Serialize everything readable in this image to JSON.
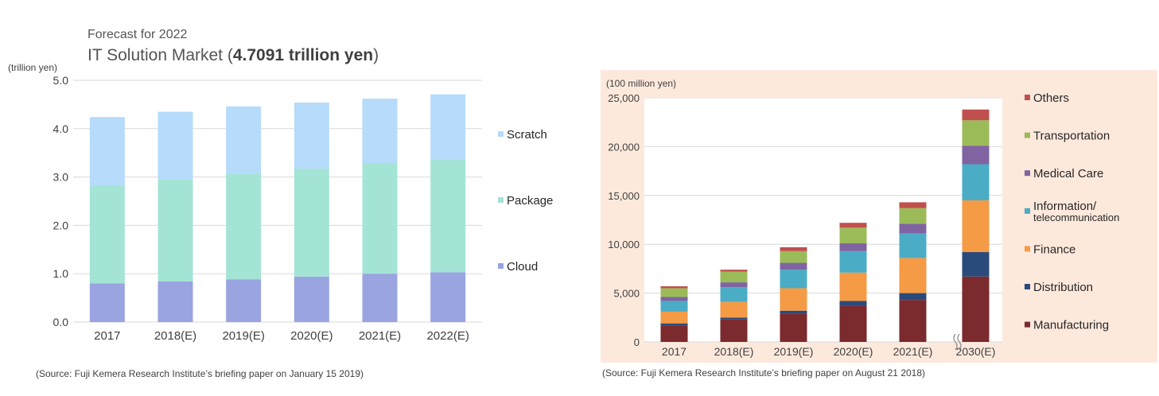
{
  "left": {
    "super_title": "Forecast for 2022",
    "title_prefix": "IT Solution Market (",
    "title_bold": "4.7091 trillion yen",
    "title_suffix": ")",
    "unit": "(trillion yen)",
    "source": "(Source: Fuji Kemera Research Institute’s briefing paper on January 15 2019)"
  },
  "right": {
    "unit": "(100 million yen)",
    "source": "(Source: Fuji Kemera Research Institute’s briefing paper on August 21 2018)"
  },
  "chart_data": [
    {
      "type": "bar",
      "stacked": true,
      "title": "IT Solution Market (4.7091 trillion yen)",
      "ylabel": "(trillion yen)",
      "categories": [
        "2017",
        "2018(E)",
        "2019(E)",
        "2020(E)",
        "2021(E)",
        "2022(E)"
      ],
      "ylim": [
        0,
        5
      ],
      "yticks": [
        "0.0",
        "1.0",
        "2.0",
        "3.0",
        "4.0",
        "5.0"
      ],
      "grid": true,
      "legend": "right",
      "series": [
        {
          "name": "Cloud",
          "color": "#9aa4e0",
          "values": [
            0.8,
            0.84,
            0.88,
            0.94,
            1.0,
            1.03
          ]
        },
        {
          "name": "Package",
          "color": "#a3e4d5",
          "values": [
            2.02,
            2.11,
            2.19,
            2.23,
            2.29,
            2.33
          ]
        },
        {
          "name": "Scratch",
          "color": "#b6dbfb",
          "values": [
            1.42,
            1.4,
            1.39,
            1.37,
            1.33,
            1.35
          ]
        }
      ]
    },
    {
      "type": "bar",
      "stacked": true,
      "ylabel": "(100 million yen)",
      "categories": [
        "2017",
        "2018(E)",
        "2019(E)",
        "2020(E)",
        "2021(E)",
        "2030(E)"
      ],
      "ylim": [
        0,
        25000
      ],
      "yticks": [
        "0",
        "5,000",
        "10,000",
        "15,000",
        "20,000",
        "25,000"
      ],
      "grid": true,
      "legend": "right",
      "axis_break_before_last": true,
      "series": [
        {
          "name": "Manufacturing",
          "color": "#7b2a2e",
          "values": [
            1700,
            2300,
            2900,
            3700,
            4300,
            6700
          ]
        },
        {
          "name": "Distribution",
          "color": "#2a4a7b",
          "values": [
            200,
            200,
            300,
            500,
            700,
            2500
          ]
        },
        {
          "name": "Finance",
          "color": "#f59a45",
          "values": [
            1200,
            1600,
            2300,
            2900,
            3600,
            5300
          ]
        },
        {
          "name": "Information/ telecommunication",
          "color": "#4bacc6",
          "values": [
            1100,
            1500,
            1900,
            2200,
            2500,
            3700
          ]
        },
        {
          "name": "Medical Care",
          "color": "#8064a2",
          "values": [
            400,
            500,
            700,
            800,
            1000,
            1900
          ]
        },
        {
          "name": "Transportation",
          "color": "#9bbb59",
          "values": [
            900,
            1100,
            1200,
            1600,
            1600,
            2600
          ]
        },
        {
          "name": "Others",
          "color": "#c0504d",
          "values": [
            200,
            200,
            400,
            500,
            600,
            1100
          ]
        }
      ]
    }
  ]
}
